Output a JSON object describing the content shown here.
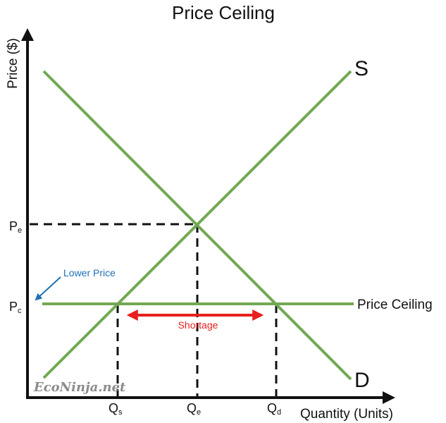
{
  "title": "Price Ceiling",
  "y_axis_label": "Price ($)",
  "x_axis_label": "Quantity (Units)",
  "curves": {
    "supply_label": "S",
    "demand_label": "D",
    "price_ceiling_label": "Price Ceiling"
  },
  "price_ticks": {
    "equilibrium": {
      "main": "P",
      "sub": "e"
    },
    "ceiling": {
      "main": "P",
      "sub": "c"
    }
  },
  "quantity_ticks": {
    "supplied": {
      "main": "Q",
      "sub": "s"
    },
    "equilibrium": {
      "main": "Q",
      "sub": "e"
    },
    "demanded": {
      "main": "Q",
      "sub": "d"
    }
  },
  "annotations": {
    "shortage": "Shortage",
    "lower_price": "Lower Price"
  },
  "watermark": "EcoNinja.net",
  "colors": {
    "curves": "#72a853",
    "axes": "#111111",
    "shortage": "#e8201d",
    "lower_price": "#1f6fb5",
    "watermark": "#8c8c8c"
  }
}
